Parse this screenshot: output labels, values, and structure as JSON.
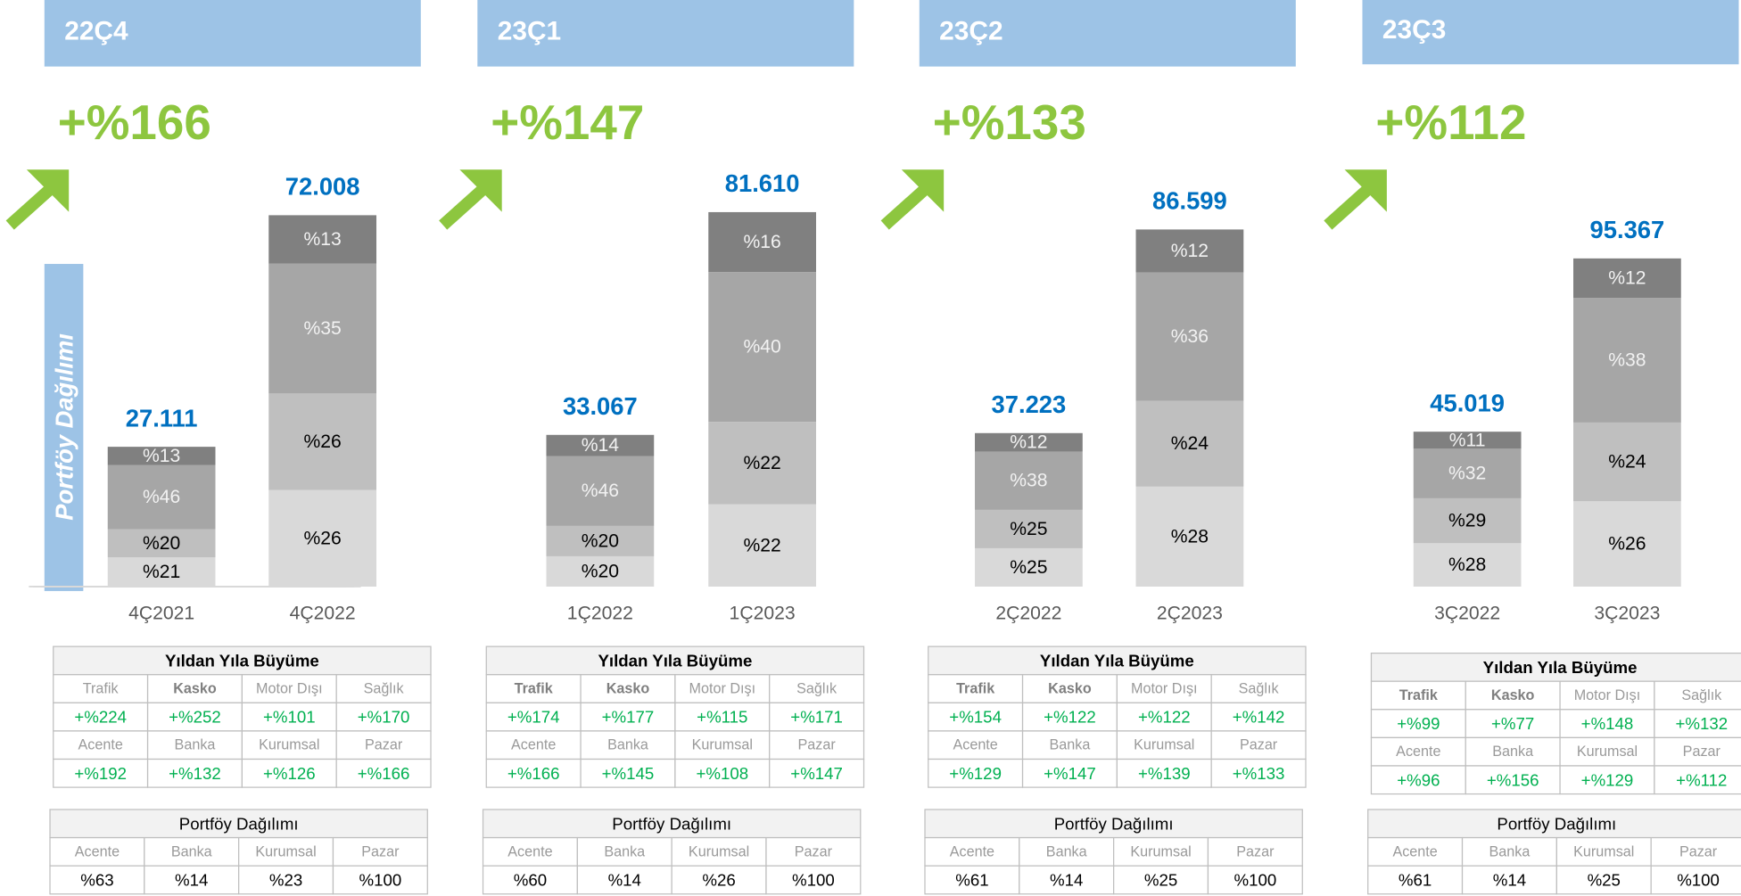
{
  "side_label": "Portföy Dağılımı",
  "chart_data": [
    {
      "type": "bar",
      "title": "22Ç4",
      "growth": "+%166",
      "categories": [
        "4Ç2021",
        "4Ç2022"
      ],
      "values": [
        27111,
        72008
      ],
      "value_labels": [
        "27.111",
        "72.008"
      ],
      "ylim": [
        0,
        77400
      ],
      "series": [
        {
          "color": "#d9d9d9",
          "values": [
            21,
            26
          ],
          "value_labels": [
            "%21",
            "%26"
          ]
        },
        {
          "color": "#bfbfbf",
          "values": [
            20,
            26
          ],
          "value_labels": [
            "%20",
            "%26"
          ]
        },
        {
          "color": "#a6a6a6",
          "values": [
            46,
            35
          ],
          "value_labels": [
            "%46",
            "%35"
          ]
        },
        {
          "color": "#808080",
          "values": [
            13,
            13
          ],
          "value_labels": [
            "%13",
            "%13"
          ]
        }
      ],
      "growth_table": {
        "title": "Yıldan Yıla Büyüme",
        "bold": [
          1
        ],
        "rows": [
          [
            "Trafik",
            "Kasko",
            "Motor Dışı",
            "Sağlık"
          ],
          [
            "+%224",
            "+%252",
            "+%101",
            "+%170"
          ],
          [
            "Acente",
            "Banka",
            "Kurumsal",
            "Pazar"
          ],
          [
            "+%192",
            "+%132",
            "+%126",
            "+%166"
          ]
        ]
      },
      "portfolio_table": {
        "title": "Portföy Dağılımı",
        "rows": [
          [
            "Acente",
            "Banka",
            "Kurumsal",
            "Pazar"
          ],
          [
            "%63",
            "%14",
            "%23",
            "%100"
          ]
        ]
      }
    },
    {
      "type": "bar",
      "title": "23Ç1",
      "growth": "+%147",
      "categories": [
        "1Ç2022",
        "1Ç2023"
      ],
      "values": [
        33067,
        81610
      ],
      "value_labels": [
        "33.067",
        "81.610"
      ],
      "ylim": [
        0,
        87000
      ],
      "series": [
        {
          "color": "#d9d9d9",
          "values": [
            20,
            22
          ],
          "value_labels": [
            "%20",
            "%22"
          ]
        },
        {
          "color": "#bfbfbf",
          "values": [
            20,
            22
          ],
          "value_labels": [
            "%20",
            "%22"
          ]
        },
        {
          "color": "#a6a6a6",
          "values": [
            46,
            40
          ],
          "value_labels": [
            "%46",
            "%40"
          ]
        },
        {
          "color": "#808080",
          "values": [
            14,
            16
          ],
          "value_labels": [
            "%14",
            "%16"
          ]
        }
      ],
      "growth_table": {
        "title": "Yıldan Yıla Büyüme",
        "bold": [
          0,
          1
        ],
        "rows": [
          [
            "Trafik",
            "Kasko",
            "Motor Dışı",
            "Sağlık"
          ],
          [
            "+%174",
            "+%177",
            "+%115",
            "+%171"
          ],
          [
            "Acente",
            "Banka",
            "Kurumsal",
            "Pazar"
          ],
          [
            "+%166",
            "+%145",
            "+%108",
            "+%147"
          ]
        ]
      },
      "portfolio_table": {
        "title": "Portföy Dağılımı",
        "rows": [
          [
            "Acente",
            "Banka",
            "Kurumsal",
            "Pazar"
          ],
          [
            "%60",
            "%14",
            "%26",
            "%100"
          ]
        ]
      }
    },
    {
      "type": "bar",
      "title": "23Ç2",
      "growth": "+%133",
      "categories": [
        "2Ç2022",
        "2Ç2023"
      ],
      "values": [
        37223,
        86599
      ],
      "value_labels": [
        "37.223",
        "86.599"
      ],
      "ylim": [
        0,
        96800
      ],
      "series": [
        {
          "color": "#d9d9d9",
          "values": [
            25,
            28
          ],
          "value_labels": [
            "%25",
            "%28"
          ]
        },
        {
          "color": "#bfbfbf",
          "values": [
            25,
            24
          ],
          "value_labels": [
            "%25",
            "%24"
          ]
        },
        {
          "color": "#a6a6a6",
          "values": [
            38,
            36
          ],
          "value_labels": [
            "%38",
            "%36"
          ]
        },
        {
          "color": "#808080",
          "values": [
            12,
            12
          ],
          "value_labels": [
            "%12",
            "%12"
          ]
        }
      ],
      "growth_table": {
        "title": "Yıldan Yıla Büyüme",
        "bold": [
          0,
          1
        ],
        "rows": [
          [
            "Trafik",
            "Kasko",
            "Motor Dışı",
            "Sağlık"
          ],
          [
            "+%154",
            "+%122",
            "+%122",
            "+%142"
          ],
          [
            "Acente",
            "Banka",
            "Kurumsal",
            "Pazar"
          ],
          [
            "+%129",
            "+%147",
            "+%139",
            "+%133"
          ]
        ]
      },
      "portfolio_table": {
        "title": "Portföy Dağılımı",
        "rows": [
          [
            "Acente",
            "Banka",
            "Kurumsal",
            "Pazar"
          ],
          [
            "%61",
            "%14",
            "%25",
            "%100"
          ]
        ]
      }
    },
    {
      "type": "bar",
      "title": "23Ç3",
      "growth": "+%112",
      "categories": [
        "3Ç2022",
        "3Ç2023"
      ],
      "values": [
        45019,
        95367
      ],
      "value_labels": [
        "45.019",
        "95.367"
      ],
      "ylim": [
        0,
        116000
      ],
      "series": [
        {
          "color": "#d9d9d9",
          "values": [
            28,
            26
          ],
          "value_labels": [
            "%28",
            "%26"
          ]
        },
        {
          "color": "#bfbfbf",
          "values": [
            29,
            24
          ],
          "value_labels": [
            "%29",
            "%24"
          ]
        },
        {
          "color": "#a6a6a6",
          "values": [
            32,
            38
          ],
          "value_labels": [
            "%32",
            "%38"
          ]
        },
        {
          "color": "#808080",
          "values": [
            11,
            12
          ],
          "value_labels": [
            "%11",
            "%12"
          ]
        }
      ],
      "growth_table": {
        "title": "Yıldan Yıla Büyüme",
        "bold": [
          0,
          1
        ],
        "rows": [
          [
            "Trafik",
            "Kasko",
            "Motor Dışı",
            "Sağlık"
          ],
          [
            "+%99",
            "+%77",
            "+%148",
            "+%132"
          ],
          [
            "Acente",
            "Banka",
            "Kurumsal",
            "Pazar"
          ],
          [
            "+%96",
            "+%156",
            "+%129",
            "+%112"
          ]
        ]
      },
      "portfolio_table": {
        "title": "Portföy Dağılımı",
        "rows": [
          [
            "Acente",
            "Banka",
            "Kurumsal",
            "Pazar"
          ],
          [
            "%61",
            "%14",
            "%25",
            "%100"
          ]
        ]
      }
    }
  ]
}
